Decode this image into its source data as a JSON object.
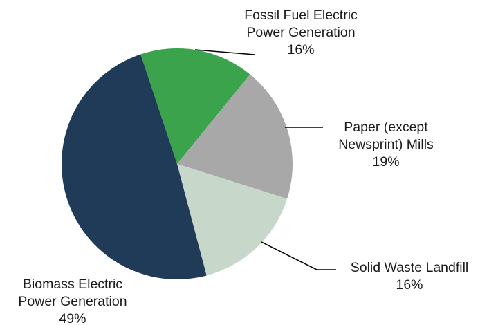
{
  "chart_data": {
    "type": "pie",
    "title": "",
    "start_angle_deg": -18.4,
    "direction": "clockwise",
    "slices": [
      {
        "name": "Fossil Fuel Electric Power Generation",
        "label_lines": [
          "Fossil Fuel Electric",
          "Power Generation"
        ],
        "value": 16,
        "percent_label": "16%",
        "color": "#3ba34c"
      },
      {
        "name": "Paper (except Newsprint) Mills",
        "label_lines": [
          "Paper (except",
          "Newsprint) Mills"
        ],
        "value": 19,
        "percent_label": "19%",
        "color": "#a8a8a8"
      },
      {
        "name": "Solid Waste Landfill",
        "label_lines": [
          "Solid Waste Landfill"
        ],
        "value": 16,
        "percent_label": "16%",
        "color": "#c7d8cb"
      },
      {
        "name": "Biomass Electric Power Generation",
        "label_lines": [
          "Biomass Electric",
          "Power Generation"
        ],
        "value": 49,
        "percent_label": "49%",
        "color": "#1f3b57"
      }
    ]
  }
}
